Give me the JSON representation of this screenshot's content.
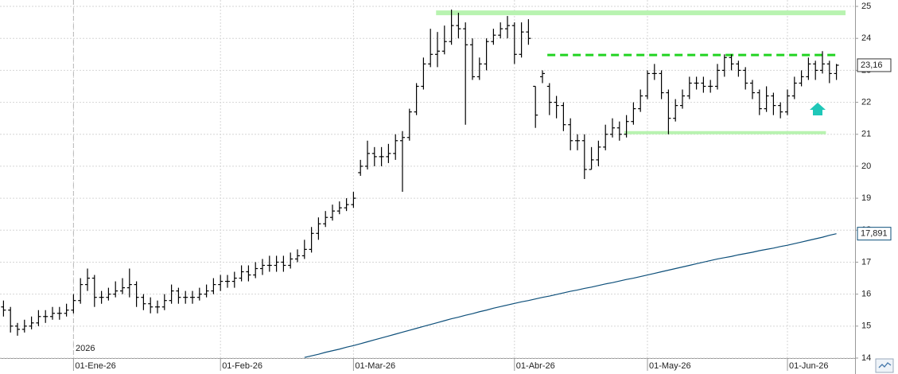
{
  "chart_data": {
    "type": "ohlc",
    "year_label": "2026",
    "categories": [
      null,
      null,
      null,
      null,
      null,
      null,
      null,
      null,
      null,
      null,
      "01-Ene-26",
      null,
      null,
      null,
      null,
      null,
      null,
      null,
      null,
      null,
      null,
      null,
      null,
      null,
      null,
      null,
      null,
      null,
      null,
      null,
      null,
      "01-Feb-26",
      null,
      null,
      null,
      null,
      null,
      null,
      null,
      null,
      null,
      null,
      null,
      null,
      null,
      null,
      null,
      null,
      null,
      null,
      "01-Mar-26",
      null,
      null,
      null,
      null,
      null,
      null,
      null,
      null,
      null,
      null,
      null,
      null,
      null,
      null,
      null,
      null,
      null,
      null,
      null,
      null,
      null,
      null,
      "01-Abr-26",
      null,
      null,
      null,
      null,
      null,
      null,
      null,
      null,
      null,
      null,
      null,
      null,
      null,
      null,
      null,
      null,
      null,
      null,
      "01-May-26",
      null,
      null,
      null,
      null,
      null,
      null,
      null,
      null,
      null,
      null,
      null,
      null,
      null,
      null,
      null,
      null,
      null,
      null,
      null,
      "01-Jun-26",
      null,
      null,
      null,
      null,
      null,
      null,
      null
    ],
    "series": [
      {
        "color": "#000000",
        "open": [
          15.6,
          15.5,
          15.0,
          14.9,
          15.0,
          15.1,
          15.3,
          15.3,
          15.4,
          15.4,
          15.5,
          15.8,
          16.3,
          16.5,
          15.9,
          15.9,
          16.0,
          16.1,
          16.2,
          16.3,
          15.9,
          15.7,
          15.6,
          15.6,
          15.8,
          16.1,
          15.9,
          15.9,
          15.9,
          16.0,
          16.1,
          16.3,
          16.4,
          16.4,
          16.5,
          16.7,
          16.6,
          16.8,
          16.9,
          16.9,
          17.0,
          16.9,
          17.1,
          17.2,
          17.4,
          17.9,
          18.2,
          18.4,
          18.6,
          18.7,
          18.8,
          19.8,
          20.0,
          20.4,
          20.3,
          20.3,
          20.4,
          20.8,
          20.9,
          21.7,
          22.5,
          23.2,
          23.5,
          23.6,
          23.9,
          24.4,
          24.3,
          23.8,
          22.8,
          23.2,
          23.9,
          24.1,
          24.3,
          24.4,
          23.5,
          24.2,
          22.5,
          22.8,
          22.5,
          22.0,
          21.9,
          21.3,
          20.8,
          20.8,
          19.9,
          20.2,
          20.6,
          21.0,
          21.2,
          21.0,
          21.4,
          21.8,
          22.2,
          22.9,
          22.9,
          22.3,
          21.5,
          21.9,
          22.2,
          22.6,
          22.6,
          22.5,
          22.5,
          23.0,
          23.4,
          23.2,
          23.0,
          22.6,
          22.3,
          21.8,
          22.2,
          21.9,
          21.7,
          22.2,
          22.6,
          22.8,
          23.2,
          23.0,
          23.2,
          22.9
        ],
        "high": [
          15.8,
          15.6,
          15.1,
          15.2,
          15.3,
          15.5,
          15.5,
          15.6,
          15.6,
          15.7,
          16.0,
          16.5,
          16.8,
          16.6,
          16.1,
          16.2,
          16.4,
          16.5,
          16.8,
          16.4,
          16.0,
          15.9,
          15.8,
          16.0,
          16.3,
          16.2,
          16.1,
          16.1,
          16.2,
          16.3,
          16.5,
          16.6,
          16.6,
          16.7,
          16.9,
          16.9,
          17.0,
          17.1,
          17.2,
          17.2,
          17.2,
          17.3,
          17.4,
          17.7,
          18.1,
          18.4,
          18.6,
          18.8,
          18.9,
          19.0,
          19.2,
          20.2,
          20.8,
          20.6,
          20.6,
          20.7,
          21.0,
          21.1,
          21.8,
          22.6,
          23.4,
          24.3,
          24.2,
          24.4,
          24.9,
          24.8,
          24.5,
          24.0,
          23.4,
          24.0,
          24.3,
          24.5,
          24.7,
          24.5,
          24.5,
          24.6,
          22.5,
          23.0,
          22.6,
          22.2,
          22.0,
          21.5,
          21.0,
          21.0,
          20.6,
          20.8,
          21.3,
          21.5,
          21.4,
          21.6,
          22.0,
          22.4,
          23.0,
          23.2,
          23.0,
          22.4,
          22.1,
          22.4,
          22.8,
          22.8,
          22.8,
          22.7,
          23.2,
          23.5,
          23.5,
          23.3,
          23.1,
          22.7,
          22.4,
          22.5,
          22.3,
          22.0,
          22.4,
          22.8,
          23.0,
          23.4,
          23.3,
          23.6,
          23.3,
          23.2
        ],
        "low": [
          15.3,
          14.8,
          14.7,
          14.8,
          14.9,
          15.0,
          15.1,
          15.2,
          15.2,
          15.3,
          15.4,
          15.7,
          16.1,
          15.6,
          15.7,
          15.8,
          15.9,
          16.0,
          15.9,
          15.6,
          15.5,
          15.4,
          15.4,
          15.5,
          15.7,
          15.7,
          15.7,
          15.7,
          15.8,
          15.9,
          16.0,
          16.1,
          16.2,
          16.2,
          16.4,
          16.4,
          16.5,
          16.6,
          16.7,
          16.7,
          16.7,
          16.8,
          17.0,
          17.1,
          17.3,
          17.7,
          18.1,
          18.3,
          18.5,
          18.6,
          18.7,
          19.7,
          19.9,
          20.0,
          20.0,
          20.1,
          20.2,
          19.2,
          20.8,
          21.6,
          22.4,
          23.1,
          23.1,
          23.5,
          23.8,
          24.0,
          21.3,
          22.7,
          22.7,
          23.0,
          23.8,
          24.0,
          24.0,
          23.2,
          23.4,
          23.8,
          21.2,
          22.6,
          21.6,
          21.5,
          21.1,
          20.5,
          20.5,
          19.6,
          19.9,
          20.0,
          20.5,
          20.9,
          20.8,
          20.9,
          21.3,
          21.7,
          22.1,
          22.7,
          22.1,
          21.0,
          21.4,
          21.8,
          22.1,
          22.4,
          22.3,
          22.3,
          22.4,
          22.8,
          23.0,
          22.8,
          22.4,
          22.1,
          21.6,
          21.7,
          21.6,
          21.5,
          21.6,
          22.1,
          22.5,
          22.7,
          22.7,
          22.9,
          22.6,
          22.7
        ],
        "values": [
          15.5,
          15.0,
          14.9,
          15.0,
          15.1,
          15.3,
          15.3,
          15.4,
          15.4,
          15.5,
          15.8,
          16.3,
          16.5,
          15.9,
          15.9,
          16.0,
          16.1,
          16.2,
          16.3,
          15.9,
          15.7,
          15.6,
          15.6,
          15.8,
          16.1,
          15.9,
          15.9,
          15.9,
          16.0,
          16.1,
          16.3,
          16.4,
          16.4,
          16.5,
          16.7,
          16.6,
          16.8,
          16.9,
          16.9,
          17.0,
          16.9,
          17.1,
          17.2,
          17.4,
          17.9,
          18.2,
          18.4,
          18.6,
          18.7,
          18.8,
          19.0,
          20.0,
          20.4,
          20.3,
          20.3,
          20.4,
          20.8,
          20.9,
          21.7,
          22.5,
          23.2,
          23.5,
          23.6,
          23.9,
          24.4,
          24.3,
          23.8,
          22.8,
          23.2,
          23.9,
          24.1,
          24.3,
          24.4,
          23.5,
          24.2,
          24.0,
          21.6,
          22.9,
          22.0,
          21.9,
          21.3,
          20.8,
          20.8,
          19.9,
          20.2,
          20.6,
          21.0,
          21.2,
          21.0,
          21.4,
          21.8,
          22.2,
          22.9,
          22.9,
          22.3,
          21.5,
          21.9,
          22.2,
          22.6,
          22.6,
          22.5,
          22.5,
          23.0,
          23.4,
          23.2,
          23.0,
          22.6,
          22.3,
          21.8,
          22.2,
          21.9,
          21.7,
          22.2,
          22.6,
          22.8,
          23.2,
          23.0,
          23.2,
          22.9,
          23.16
        ],
        "value_labels": [
          null,
          null,
          null,
          null,
          null,
          null,
          null,
          null,
          null,
          null,
          null,
          null,
          null,
          null,
          null,
          null,
          null,
          null,
          null,
          null,
          null,
          null,
          null,
          null,
          null,
          null,
          null,
          null,
          null,
          null,
          null,
          null,
          null,
          null,
          null,
          null,
          null,
          null,
          null,
          null,
          null,
          null,
          null,
          null,
          null,
          null,
          null,
          null,
          null,
          null,
          null,
          null,
          null,
          null,
          null,
          null,
          null,
          null,
          null,
          null,
          null,
          null,
          null,
          null,
          null,
          null,
          null,
          null,
          null,
          null,
          null,
          null,
          null,
          null,
          null,
          null,
          null,
          null,
          null,
          null,
          null,
          null,
          null,
          null,
          null,
          null,
          null,
          null,
          null,
          null,
          null,
          null,
          null,
          null,
          null,
          null,
          null,
          null,
          null,
          null,
          null,
          null,
          null,
          null,
          null,
          null,
          null,
          null,
          null,
          null,
          null,
          null,
          null,
          null,
          null,
          null,
          null,
          null,
          null,
          "23,16"
        ]
      },
      {
        "color": "#0d4f7a",
        "values": [
          null,
          null,
          null,
          null,
          null,
          null,
          null,
          null,
          null,
          null,
          null,
          null,
          null,
          null,
          null,
          null,
          null,
          null,
          null,
          null,
          null,
          null,
          null,
          null,
          null,
          null,
          null,
          null,
          null,
          null,
          null,
          null,
          null,
          null,
          null,
          null,
          null,
          null,
          null,
          null,
          null,
          null,
          null,
          14.02,
          14.07,
          14.12,
          14.18,
          14.23,
          14.28,
          14.34,
          14.39,
          14.45,
          14.51,
          14.57,
          14.63,
          14.69,
          14.75,
          14.81,
          14.87,
          14.93,
          14.99,
          15.05,
          15.11,
          15.17,
          15.23,
          15.28,
          15.34,
          15.39,
          15.45,
          15.5,
          15.56,
          15.61,
          15.66,
          15.71,
          15.76,
          15.8,
          15.85,
          15.9,
          15.94,
          15.99,
          16.04,
          16.09,
          16.13,
          16.18,
          16.22,
          16.27,
          16.32,
          16.36,
          16.41,
          16.46,
          16.5,
          16.55,
          16.6,
          16.65,
          16.7,
          16.75,
          16.8,
          16.85,
          16.9,
          16.95,
          17.0,
          17.05,
          17.1,
          17.14,
          17.18,
          17.23,
          17.27,
          17.31,
          17.36,
          17.4,
          17.44,
          17.49,
          17.53,
          17.58,
          17.63,
          17.68,
          17.73,
          17.78,
          17.84,
          17.891
        ],
        "value_labels": [
          null,
          null,
          null,
          null,
          null,
          null,
          null,
          null,
          null,
          null,
          null,
          null,
          null,
          null,
          null,
          null,
          null,
          null,
          null,
          null,
          null,
          null,
          null,
          null,
          null,
          null,
          null,
          null,
          null,
          null,
          null,
          null,
          null,
          null,
          null,
          null,
          null,
          null,
          null,
          null,
          null,
          null,
          null,
          null,
          null,
          null,
          null,
          null,
          null,
          null,
          null,
          null,
          null,
          null,
          null,
          null,
          null,
          null,
          null,
          null,
          null,
          null,
          null,
          null,
          null,
          null,
          null,
          null,
          null,
          null,
          null,
          null,
          null,
          null,
          null,
          null,
          null,
          null,
          null,
          null,
          null,
          null,
          null,
          null,
          null,
          null,
          null,
          null,
          null,
          null,
          null,
          null,
          null,
          null,
          null,
          null,
          null,
          null,
          null,
          null,
          null,
          null,
          null,
          null,
          null,
          null,
          null,
          null,
          null,
          null,
          null,
          null,
          null,
          null,
          null,
          null,
          null,
          null,
          null,
          "17,891"
        ]
      }
    ],
    "hlines": [
      {
        "value": 24.8,
        "x": [
          61.8,
          120.3
        ],
        "color": "#b8f3b0",
        "width": 6,
        "dashed": false
      },
      {
        "value": 23.48,
        "x": [
          77.7,
          119.4
        ],
        "color": "#22d322",
        "width": 3,
        "dashed": true
      },
      {
        "value": 21.05,
        "x": [
          88.7,
          117.5
        ],
        "color": "#b8f3b0",
        "width": 4,
        "dashed": false
      }
    ],
    "ylim": [
      14,
      25.2
    ],
    "yticks": [
      14,
      15,
      16,
      17,
      18,
      19,
      20,
      21,
      22,
      23,
      24,
      25
    ],
    "grid": true
  }
}
